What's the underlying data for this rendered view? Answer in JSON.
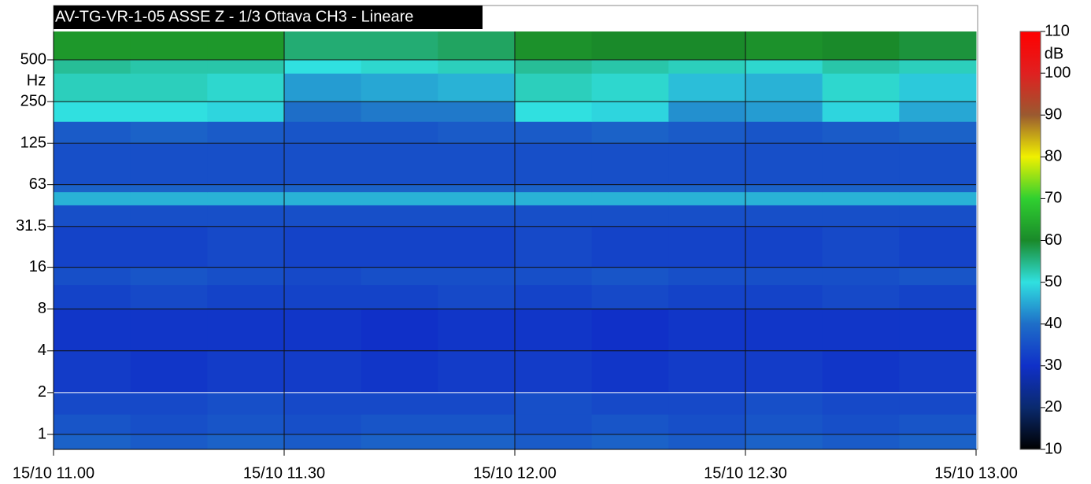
{
  "chart_data": {
    "type": "spectrogram",
    "title": "AV-TG-VR-1-05 ASSE Z - 1/3 Ottava CH3 - Lineare",
    "y_unit": "Hz",
    "x_bins": [
      0,
      10,
      20,
      30,
      40,
      50,
      60,
      70,
      80,
      90,
      100,
      110,
      120
    ],
    "y_bins": [
      0.78,
      1,
      1.4,
      2,
      4,
      8,
      12,
      16,
      31.5,
      45,
      56,
      63,
      125,
      180,
      250,
      400,
      500,
      800
    ],
    "values": [
      [
        38,
        37,
        38,
        37,
        38,
        38,
        37,
        38,
        37,
        38,
        37,
        38
      ],
      [
        36,
        35,
        36,
        35,
        36,
        36,
        35,
        36,
        35,
        36,
        35,
        36
      ],
      [
        34,
        34,
        35,
        34,
        34,
        34,
        35,
        34,
        34,
        35,
        34,
        34
      ],
      [
        32,
        31,
        32,
        32,
        31,
        32,
        32,
        31,
        32,
        32,
        31,
        32
      ],
      [
        31,
        31,
        31,
        31,
        30,
        31,
        31,
        30,
        31,
        31,
        31,
        31
      ],
      [
        33,
        34,
        33,
        33,
        33,
        34,
        33,
        34,
        33,
        33,
        34,
        33
      ],
      [
        35,
        36,
        35,
        34,
        35,
        35,
        35,
        36,
        35,
        35,
        35,
        36
      ],
      [
        33,
        33,
        34,
        33,
        33,
        33,
        34,
        33,
        33,
        33,
        34,
        33
      ],
      [
        35,
        35,
        35,
        35,
        35,
        35,
        35,
        35,
        35,
        35,
        35,
        35
      ],
      [
        46,
        46,
        46,
        46,
        46,
        46,
        46,
        46,
        46,
        46,
        46,
        46
      ],
      [
        38,
        38,
        38,
        38,
        38,
        38,
        38,
        38,
        38,
        38,
        38,
        38
      ],
      [
        35,
        35,
        35,
        35,
        35,
        35,
        35,
        35,
        35,
        35,
        35,
        35
      ],
      [
        37,
        38,
        37,
        36,
        36,
        37,
        37,
        38,
        37,
        36,
        37,
        38
      ],
      [
        50,
        50,
        49,
        40,
        41,
        41,
        50,
        49,
        43,
        44,
        49,
        45
      ],
      [
        52,
        52,
        51,
        44,
        45,
        46,
        52,
        51,
        47,
        46,
        51,
        48
      ],
      [
        54,
        53,
        53,
        50,
        51,
        52,
        54,
        53,
        52,
        51,
        53,
        52
      ],
      [
        62,
        62,
        62,
        56,
        56,
        57,
        61,
        60,
        60,
        61,
        60,
        59
      ]
    ],
    "xlim": [
      0,
      120
    ],
    "xticks": [
      {
        "value": 0,
        "label": "15/10 11.00"
      },
      {
        "value": 30,
        "label": "15/10 11.30"
      },
      {
        "value": 60,
        "label": "15/10 12.00"
      },
      {
        "value": 90,
        "label": "15/10 12.30"
      },
      {
        "value": 120,
        "label": "15/10 13.00"
      }
    ],
    "ylim": [
      0.78,
      800
    ],
    "yscale": "log",
    "yticks": [
      1,
      2,
      4,
      8,
      16,
      31.5,
      63,
      125,
      250,
      500
    ],
    "grid": true,
    "colorbar": {
      "label": "dB",
      "lim": [
        10,
        110
      ],
      "ticks": [
        10,
        20,
        30,
        40,
        50,
        60,
        70,
        80,
        90,
        100,
        110
      ],
      "colors": [
        {
          "value": 10,
          "color": "#000000"
        },
        {
          "value": 20,
          "color": "#0a2a6e"
        },
        {
          "value": 30,
          "color": "#1030c8"
        },
        {
          "value": 40,
          "color": "#1e6ec8"
        },
        {
          "value": 50,
          "color": "#30e0e0"
        },
        {
          "value": 60,
          "color": "#1a8a2a"
        },
        {
          "value": 70,
          "color": "#30d030"
        },
        {
          "value": 80,
          "color": "#f0f000"
        },
        {
          "value": 90,
          "color": "#9a5a30"
        },
        {
          "value": 100,
          "color": "#e02020"
        },
        {
          "value": 110,
          "color": "#ff0000"
        }
      ]
    }
  }
}
